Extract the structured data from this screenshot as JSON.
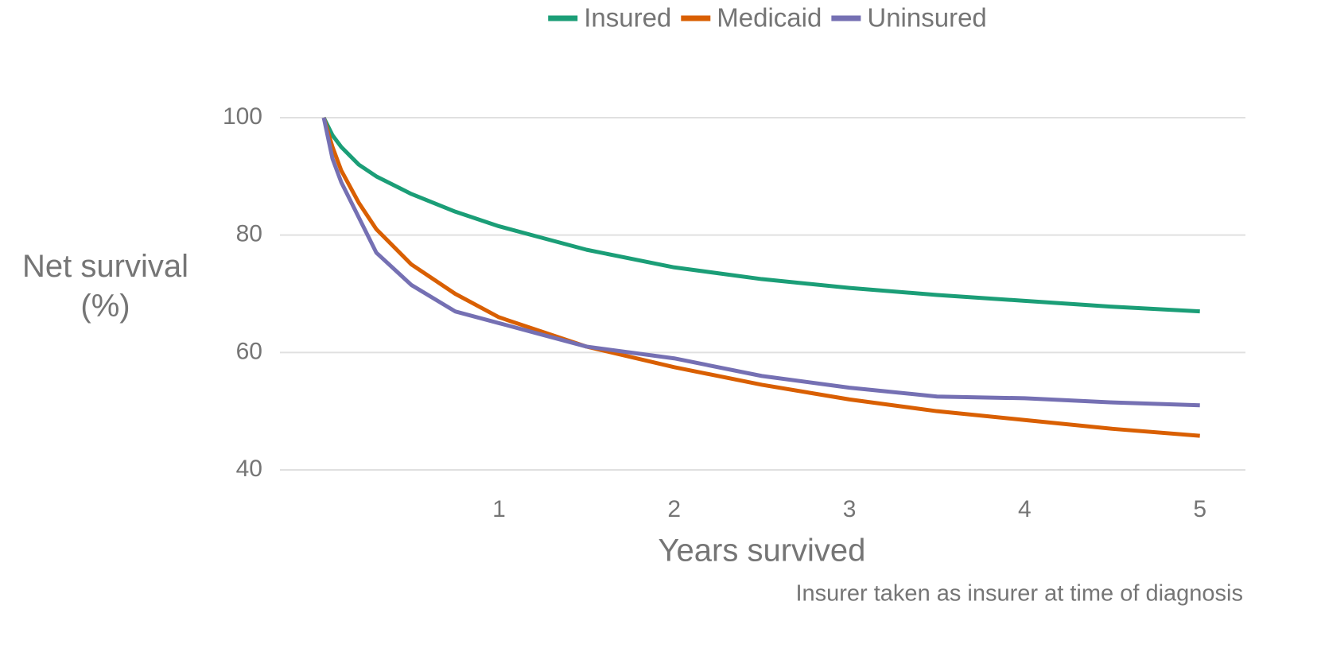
{
  "chart_data": {
    "type": "line",
    "x_label": "Years survived",
    "y_label": "Net survival (%)",
    "caption": "Insurer taken as insurer at time of diagnosis",
    "x": [
      0,
      0.05,
      0.1,
      0.2,
      0.3,
      0.5,
      0.75,
      1,
      1.25,
      1.5,
      2,
      2.5,
      3,
      3.5,
      4,
      4.5,
      5
    ],
    "series": [
      {
        "name": "Insured",
        "color": "#1b9e77",
        "values": [
          100,
          97,
          95,
          92,
          90,
          87,
          84,
          81.5,
          79.5,
          77.5,
          74.5,
          72.5,
          71,
          69.8,
          68.8,
          67.8,
          67
        ]
      },
      {
        "name": "Medicaid",
        "color": "#d95f02",
        "values": [
          100,
          95,
          91,
          85.5,
          81,
          75,
          70,
          66,
          63.5,
          61,
          57.5,
          54.5,
          52,
          50,
          48.5,
          47,
          45.8
        ]
      },
      {
        "name": "Uninsured",
        "color": "#7570b3",
        "values": [
          100,
          93,
          89,
          83,
          77,
          71.5,
          67,
          65,
          63,
          61,
          59,
          56,
          54,
          52.5,
          52.2,
          51.5,
          51
        ]
      }
    ],
    "xlim": [
      -0.25,
      5.26
    ],
    "xticks": [
      1,
      2,
      3,
      4,
      5
    ],
    "ylim": [
      40,
      100
    ],
    "yticks": [
      40,
      60,
      80,
      100
    ],
    "grid": true,
    "legend": "top"
  }
}
